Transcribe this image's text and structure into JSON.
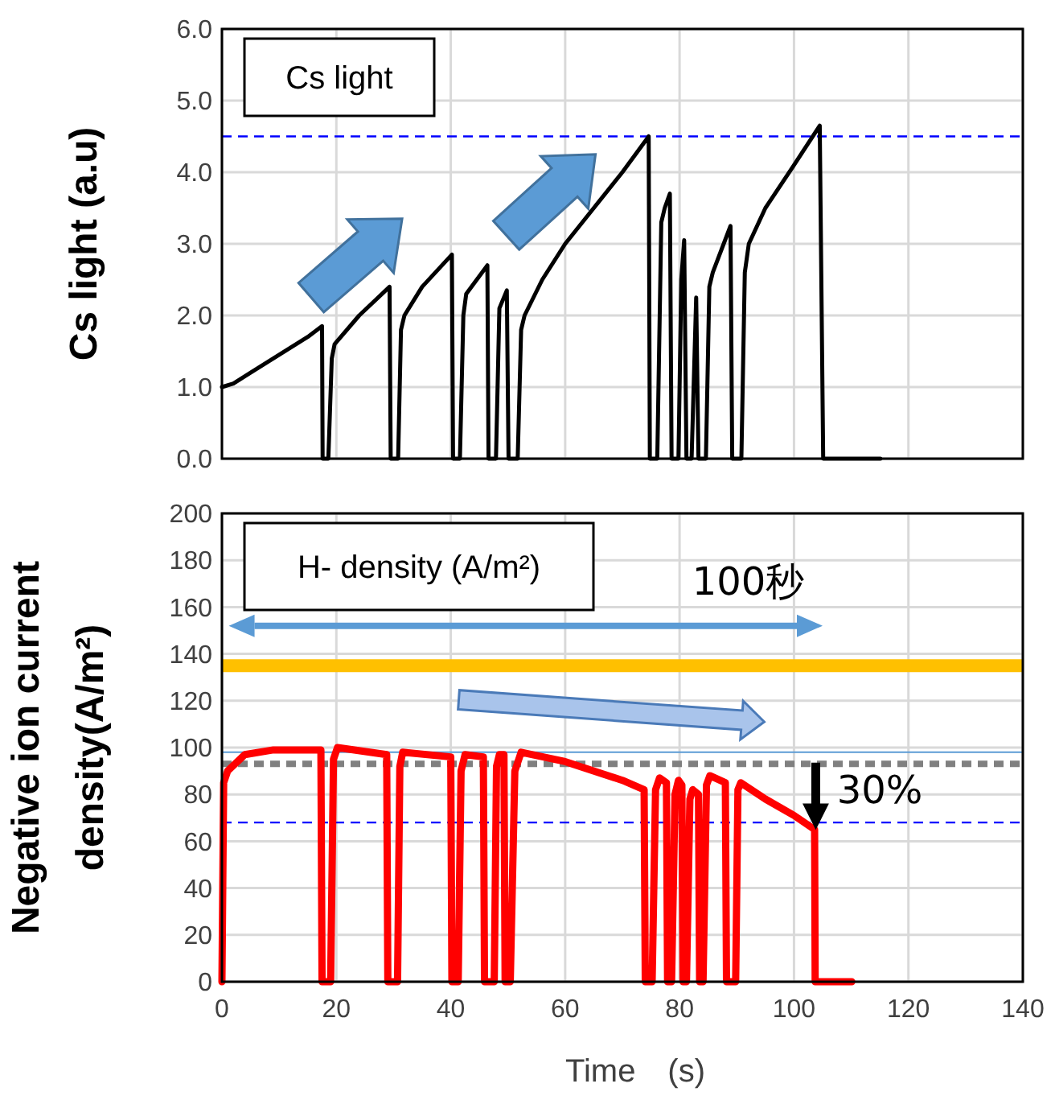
{
  "chart_data": [
    {
      "type": "line",
      "ylabel": "Cs light (a.u)",
      "annotations": [
        "Cs light"
      ],
      "xlim": [
        0,
        140
      ],
      "xticks": [
        {
          "value": 0,
          "label": null
        },
        {
          "value": 20,
          "label": null
        },
        {
          "value": 40,
          "label": null
        },
        {
          "value": 60,
          "label": null
        },
        {
          "value": 80,
          "label": null
        },
        {
          "value": 100,
          "label": null
        },
        {
          "value": 120,
          "label": null
        },
        {
          "value": 140,
          "label": null
        }
      ],
      "ylim": [
        0,
        6
      ],
      "yticks": [
        {
          "value": 0,
          "label": "0.0"
        },
        {
          "value": 1,
          "label": "1.0"
        },
        {
          "value": 2,
          "label": "2.0"
        },
        {
          "value": 3,
          "label": "3.0"
        },
        {
          "value": 4,
          "label": "4.0"
        },
        {
          "value": 5,
          "label": "5.0"
        },
        {
          "value": 6,
          "label": "6.0"
        }
      ],
      "tick_labels": "y",
      "grid": true,
      "marker": "none",
      "line_style": "solid",
      "ref_lines": [
        {
          "axis": "y",
          "value": 4.5,
          "color": "#0000ff",
          "line_style": "dashed"
        }
      ],
      "series": [
        {
          "color": "#000000",
          "x": [
            0,
            2,
            5,
            10,
            15,
            17.5,
            17.6,
            18.6,
            19.2,
            19.7,
            24,
            29.3,
            29.5,
            30.8,
            31.3,
            31.9,
            35,
            40.2,
            40.4,
            41.6,
            42.2,
            42.7,
            46.4,
            46.6,
            47.9,
            48.5,
            49.8,
            50.1,
            51.7,
            52.3,
            52.9,
            56,
            60,
            65,
            70,
            74.6,
            74.8,
            76.1,
            76.8,
            77.4,
            78.3,
            78.6,
            79.8,
            80.3,
            80.8,
            81.2,
            82.1,
            82.9,
            83.3,
            84.6,
            85.2,
            85.8,
            88.9,
            89.2,
            90.8,
            91.4,
            92.1,
            95,
            100,
            104.5,
            105.1,
            115.1
          ],
          "values": [
            1.0,
            1.05,
            1.2,
            1.45,
            1.7,
            1.85,
            0,
            0,
            1.4,
            1.6,
            2.0,
            2.4,
            0,
            0,
            1.8,
            2.0,
            2.4,
            2.85,
            0,
            0,
            2.0,
            2.3,
            2.7,
            0,
            0,
            2.1,
            2.35,
            0,
            0,
            1.8,
            2.0,
            2.5,
            3.0,
            3.5,
            4.0,
            4.5,
            0,
            0,
            3.3,
            3.5,
            3.7,
            0,
            0,
            2.5,
            3.05,
            0,
            0,
            2.25,
            0,
            0,
            2.4,
            2.6,
            3.25,
            0,
            0,
            2.6,
            3.0,
            3.5,
            4.1,
            4.65,
            0,
            0
          ]
        }
      ]
    },
    {
      "type": "line",
      "xlabel": "Time　(s)",
      "ylabel": "Negative ion current density(A/m²)",
      "annotations": [
        "H- density (A/m²)",
        "100秒",
        "30%"
      ],
      "xlim": [
        0,
        140
      ],
      "xticks": [
        0,
        20,
        40,
        60,
        80,
        100,
        120,
        140
      ],
      "ylim": [
        0,
        200
      ],
      "yticks": [
        0,
        20,
        40,
        60,
        80,
        100,
        120,
        140,
        160,
        180,
        200
      ],
      "grid": true,
      "marker": "none",
      "line_style": "solid",
      "ref_lines": [
        {
          "axis": "y",
          "value": 135,
          "color": "#ffc000",
          "line_style": "solid"
        },
        {
          "axis": "y",
          "value": 98,
          "color": "#5b9bd5",
          "line_style": "solid"
        },
        {
          "axis": "y",
          "value": 93,
          "color": "#808080",
          "line_style": "dashed"
        },
        {
          "axis": "y",
          "value": 68,
          "color": "#0000ff",
          "line_style": "dashed"
        }
      ],
      "series": [
        {
          "color": "#ff0000",
          "x": [
            0,
            0.3,
            1,
            4,
            9,
            17.3,
            17.5,
            19,
            19.5,
            20.2,
            28.8,
            29,
            30.7,
            31.1,
            31.6,
            40,
            40.2,
            41.3,
            41.8,
            42.5,
            45.7,
            45.9,
            47.6,
            48,
            48.5,
            49.3,
            49.5,
            50.4,
            51.2,
            52.3,
            60,
            70,
            73.8,
            74,
            75.2,
            75.8,
            76.5,
            77.7,
            77.9,
            78.6,
            79.2,
            79.8,
            80.4,
            80.6,
            81.2,
            81.8,
            82.3,
            83.3,
            83.5,
            84.1,
            84.7,
            85.3,
            88,
            88.2,
            89.8,
            90.2,
            90.7,
            95,
            100,
            103.6,
            103.7,
            110.1
          ],
          "values": [
            0,
            85,
            90,
            97,
            99,
            99,
            0,
            0,
            95,
            100,
            97,
            0,
            0,
            92,
            98,
            96,
            0,
            0,
            90,
            97,
            96,
            0,
            0,
            92,
            97,
            97,
            0,
            0,
            90,
            98,
            94,
            86,
            82,
            0,
            0,
            82,
            87,
            85,
            0,
            0,
            80,
            86,
            84,
            0,
            0,
            78,
            82,
            80,
            0,
            0,
            84,
            88,
            85,
            0,
            0,
            82,
            85,
            78,
            71,
            65,
            0,
            0
          ]
        }
      ]
    }
  ]
}
